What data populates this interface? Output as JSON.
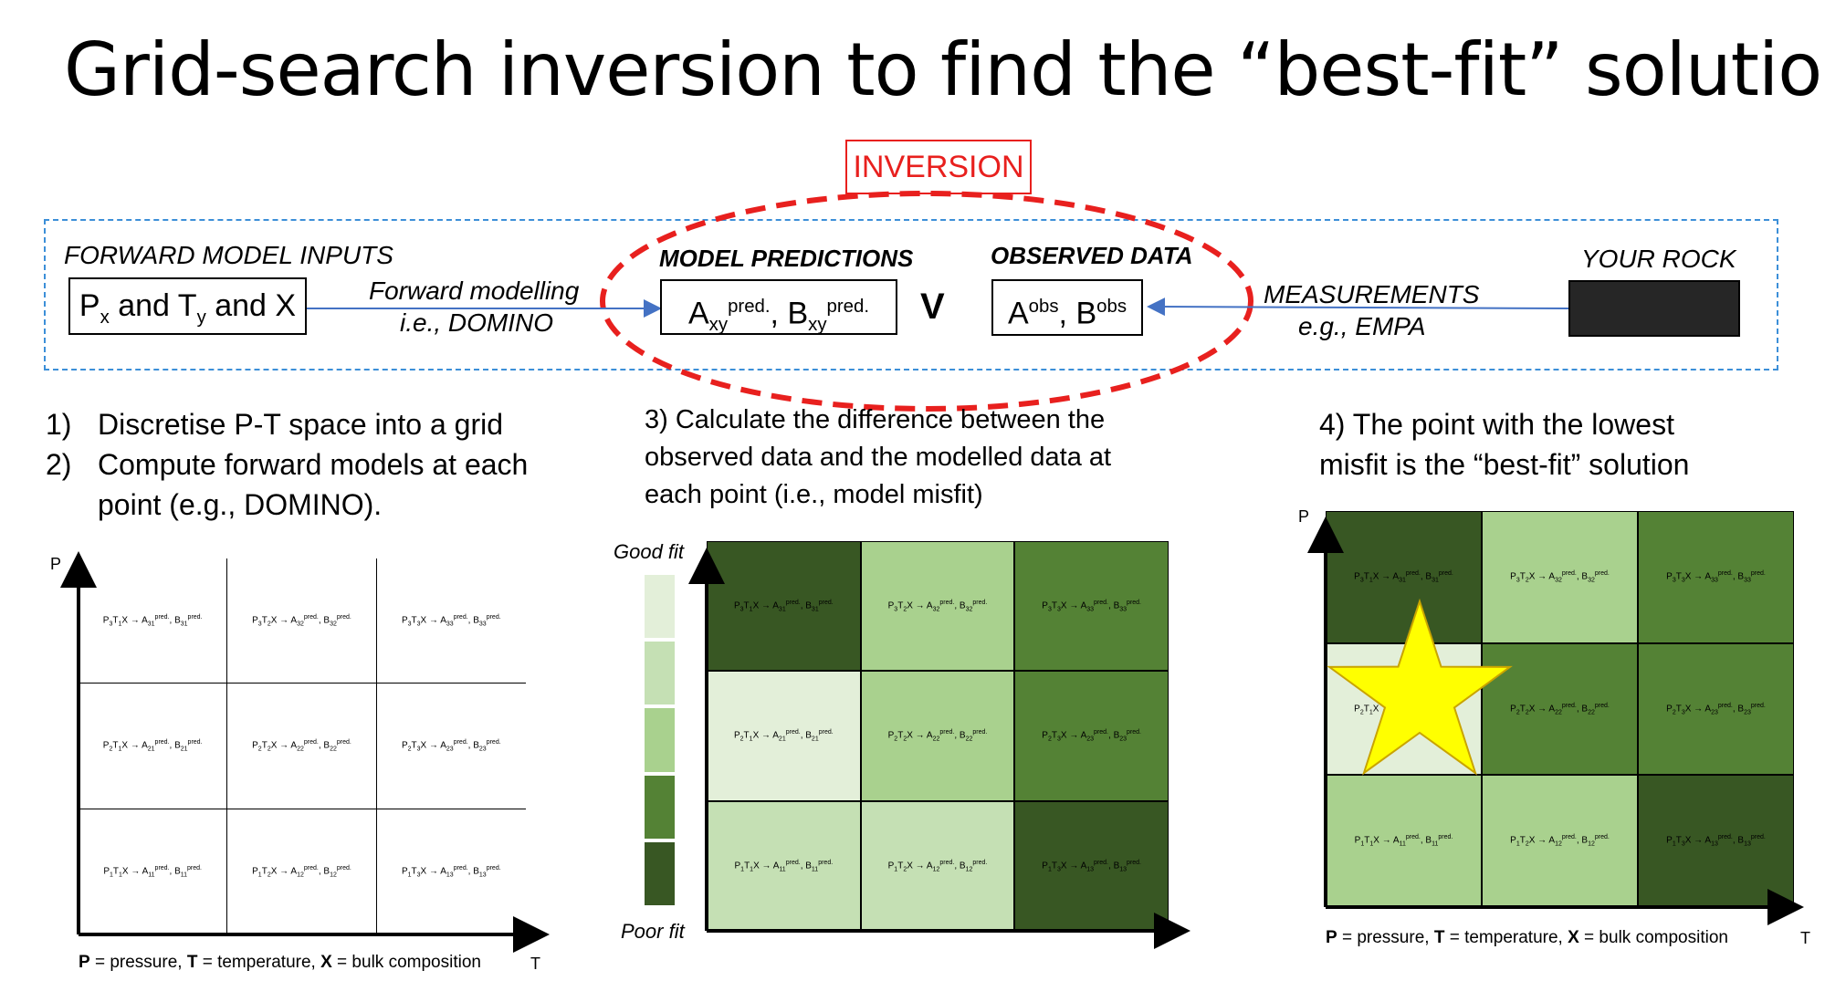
{
  "title": "Grid-search inversion to find the “best-fit” solution",
  "inversion_label": "INVERSION",
  "pipeline": {
    "inputs_heading": "FORWARD MODEL INPUTS",
    "inputs_box": {
      "p": "P",
      "p_sub": "x",
      "and1": " and ",
      "t": "T",
      "t_sub": "y",
      "rest": " and X"
    },
    "forward_label_1": "Forward modelling",
    "forward_label_2": "i.e., DOMINO",
    "predictions_heading": "MODEL PREDICTIONS",
    "predictions_box": {
      "a": "A",
      "a_sub": "xy",
      "a_sup": "pred.",
      "sep": ", ",
      "b": "B",
      "b_sub": "xy",
      "b_sup": "pred."
    },
    "versus": "V",
    "observed_heading": "OBSERVED DATA",
    "observed_box": {
      "a": "A",
      "a_sup": "obs",
      "sep": ", ",
      "b": "B",
      "b_sup": "obs"
    },
    "measurements_label_1": "MEASUREMENTS",
    "measurements_label_2": "e.g., EMPA",
    "rock_heading": "YOUR ROCK"
  },
  "steps": {
    "step1_num": "1)",
    "step1_text": "Discretise P-T space into a grid",
    "step2_num": "2)",
    "step2_text_1": "Compute forward models at each",
    "step2_text_2": "point (e.g., DOMINO).",
    "step3_line1": "3) Calculate the difference between the",
    "step3_line2": "observed data and the modelled data at",
    "step3_line3": "each point (i.e., model misfit)",
    "step4_line1": "4) The point with the lowest",
    "step4_line2": "misfit is the “best-fit” solution"
  },
  "axes": {
    "p": "P",
    "t": "T"
  },
  "caption": {
    "p": "P",
    "p_def": " = pressure, ",
    "t": "T",
    "t_def": " = temperature, ",
    "x": "X",
    "x_def": " = bulk composition"
  },
  "fit_scale": {
    "good": "Good fit",
    "poor": "Poor fit",
    "colors": [
      "#e3efd9",
      "#c5e0b4",
      "#a9d18e",
      "#548235",
      "#385723"
    ]
  },
  "grid_cells": [
    [
      "P3T1X → A31pred., B31pred.",
      "P3T2X → A32pred., B32pred.",
      "P3T3X → A33pred., B33pred."
    ],
    [
      "P2T1X → A21pred., B21pred.",
      "P2T2X → A22pred., B22pred.",
      "P2T3X → A23pred., B23pred."
    ],
    [
      "P1T1X → A11pred., B11pred.",
      "P1T2X → A12pred., B12pred.",
      "P1T3X → A13pred., B13pred."
    ]
  ],
  "misfit_grid_colors": [
    [
      "#385723",
      "#a9d18e",
      "#548235"
    ],
    [
      "#e3efd9",
      "#a9d18e",
      "#548235"
    ],
    [
      "#c5e0b4",
      "#c5e0b4",
      "#385723"
    ]
  ],
  "best_fit_grid_colors": [
    [
      "#385723",
      "#a9d18e",
      "#548235"
    ],
    [
      "#e3efd9",
      "#548235",
      "#548235"
    ],
    [
      "#a9d18e",
      "#a9d18e",
      "#385723"
    ]
  ],
  "best_fit_marker_color": "#ffff00"
}
